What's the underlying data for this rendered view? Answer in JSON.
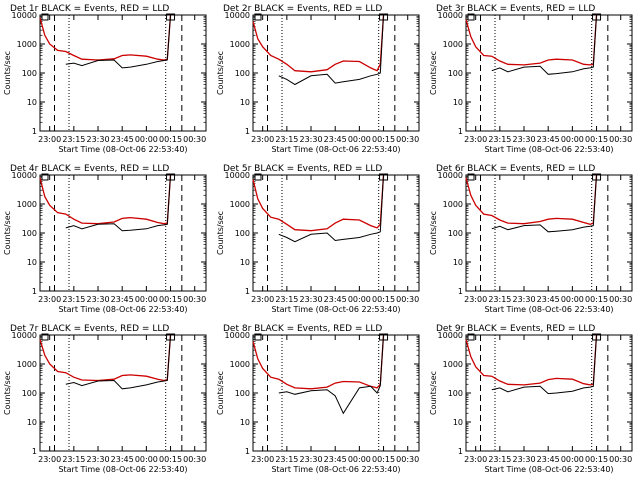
{
  "ylabel": "Counts/sec",
  "xlabel": "Start Time (08-Oct-06 22:53:40)",
  "legend_text": "BLACK = Events, RED = LLD",
  "series_colors": {
    "events": "#000000",
    "lld": "#cc0000"
  },
  "x_ticks": [
    "23:00",
    "23:15",
    "23:30",
    "23:45",
    "00:00",
    "00:15",
    "00:30"
  ],
  "y_ticks": [
    "1",
    "10",
    "100",
    "1000",
    "10000"
  ],
  "chart_data": [
    {
      "type": "line",
      "title": "Det 1r BLACK = Events, RED = LLD",
      "x": [
        "22:54",
        "22:57",
        "23:00",
        "23:05",
        "23:10",
        "23:15",
        "23:20",
        "23:30",
        "23:40",
        "23:45",
        "23:50",
        "00:00",
        "00:07",
        "00:11",
        "00:13",
        "00:15"
      ],
      "series": [
        {
          "values": [
            8000,
            2000,
            1000,
            600,
            550,
            400,
            300,
            280,
            310,
            400,
            420,
            380,
            300,
            280,
            300,
            10000
          ]
        },
        {
          "values": [
            null,
            null,
            null,
            null,
            200,
            220,
            180,
            270,
            280,
            150,
            160,
            200,
            250,
            270,
            280,
            10000
          ]
        }
      ],
      "ylim": [
        1,
        10000
      ],
      "yscale": "log",
      "vlines_dashed": [
        "23:03",
        "00:22"
      ],
      "vlines_dotted": [
        "23:12",
        "00:12"
      ]
    },
    {
      "type": "line",
      "title": "Det 2r BLACK = Events, RED = LLD",
      "x": [
        "22:54",
        "22:57",
        "23:00",
        "23:05",
        "23:10",
        "23:15",
        "23:20",
        "23:30",
        "23:40",
        "23:45",
        "23:50",
        "00:00",
        "00:07",
        "00:11",
        "00:13",
        "00:15"
      ],
      "series": [
        {
          "values": [
            6000,
            1500,
            800,
            400,
            300,
            200,
            120,
            110,
            130,
            200,
            260,
            250,
            150,
            120,
            200,
            10000
          ]
        },
        {
          "values": [
            null,
            null,
            null,
            null,
            80,
            60,
            40,
            80,
            90,
            45,
            50,
            60,
            80,
            90,
            100,
            10000
          ]
        }
      ],
      "ylim": [
        1,
        10000
      ],
      "yscale": "log",
      "vlines_dashed": [
        "23:03",
        "00:22"
      ],
      "vlines_dotted": [
        "23:12",
        "00:12"
      ]
    },
    {
      "type": "line",
      "title": "Det 3r BLACK = Events, RED = LLD",
      "x": [
        "22:54",
        "22:57",
        "23:00",
        "23:05",
        "23:10",
        "23:15",
        "23:20",
        "23:30",
        "23:40",
        "23:45",
        "23:50",
        "00:00",
        "00:07",
        "00:11",
        "00:13",
        "00:15"
      ],
      "series": [
        {
          "values": [
            7000,
            1800,
            800,
            400,
            380,
            260,
            200,
            190,
            220,
            280,
            300,
            280,
            200,
            190,
            200,
            10000
          ]
        },
        {
          "values": [
            null,
            null,
            null,
            null,
            120,
            150,
            110,
            160,
            170,
            90,
            95,
            110,
            140,
            150,
            160,
            10000
          ]
        }
      ],
      "ylim": [
        1,
        10000
      ],
      "yscale": "log",
      "vlines_dashed": [
        "23:03",
        "00:22"
      ],
      "vlines_dotted": [
        "23:12",
        "00:12"
      ]
    },
    {
      "type": "line",
      "title": "Det 4r BLACK = Events, RED = LLD",
      "x": [
        "22:54",
        "22:57",
        "23:00",
        "23:05",
        "23:10",
        "23:15",
        "23:20",
        "23:30",
        "23:40",
        "23:45",
        "23:50",
        "00:00",
        "00:07",
        "00:11",
        "00:13",
        "00:15"
      ],
      "series": [
        {
          "values": [
            8000,
            1800,
            900,
            500,
            450,
            300,
            220,
            210,
            240,
            320,
            340,
            300,
            230,
            210,
            220,
            10000
          ]
        },
        {
          "values": [
            null,
            null,
            null,
            null,
            150,
            180,
            140,
            200,
            210,
            120,
            125,
            140,
            180,
            190,
            200,
            10000
          ]
        }
      ],
      "ylim": [
        1,
        10000
      ],
      "yscale": "log",
      "vlines_dashed": [
        "23:03",
        "00:22"
      ],
      "vlines_dotted": [
        "23:12",
        "00:12"
      ]
    },
    {
      "type": "line",
      "title": "Det 5r BLACK = Events, RED = LLD",
      "x": [
        "22:54",
        "22:57",
        "23:00",
        "23:05",
        "23:10",
        "23:15",
        "23:20",
        "23:30",
        "23:40",
        "23:45",
        "23:50",
        "00:00",
        "00:07",
        "00:11",
        "00:13",
        "00:15"
      ],
      "series": [
        {
          "values": [
            7000,
            1500,
            700,
            350,
            300,
            200,
            130,
            120,
            140,
            220,
            300,
            280,
            180,
            150,
            200,
            10000
          ]
        },
        {
          "values": [
            null,
            null,
            null,
            null,
            90,
            70,
            50,
            90,
            100,
            55,
            60,
            70,
            90,
            100,
            110,
            10000
          ]
        }
      ],
      "ylim": [
        1,
        10000
      ],
      "yscale": "log",
      "vlines_dashed": [
        "23:03",
        "00:22"
      ],
      "vlines_dotted": [
        "23:12",
        "00:12"
      ]
    },
    {
      "type": "line",
      "title": "Det 6r BLACK = Events, RED = LLD",
      "x": [
        "22:54",
        "22:57",
        "23:00",
        "23:05",
        "23:10",
        "23:15",
        "23:20",
        "23:30",
        "23:40",
        "23:45",
        "23:50",
        "00:00",
        "00:07",
        "00:11",
        "00:13",
        "00:15"
      ],
      "series": [
        {
          "values": [
            8000,
            2000,
            900,
            450,
            400,
            280,
            220,
            210,
            250,
            300,
            320,
            300,
            230,
            200,
            220,
            10000
          ]
        },
        {
          "values": [
            null,
            null,
            null,
            null,
            140,
            170,
            130,
            180,
            190,
            110,
            115,
            130,
            160,
            170,
            180,
            10000
          ]
        }
      ],
      "ylim": [
        1,
        10000
      ],
      "yscale": "log",
      "vlines_dashed": [
        "23:03",
        "00:22"
      ],
      "vlines_dotted": [
        "23:12",
        "00:12"
      ]
    },
    {
      "type": "line",
      "title": "Det 7r BLACK = Events, RED = LLD",
      "x": [
        "22:54",
        "22:57",
        "23:00",
        "23:05",
        "23:10",
        "23:15",
        "23:20",
        "23:30",
        "23:40",
        "23:45",
        "23:50",
        "00:00",
        "00:07",
        "00:11",
        "00:13",
        "00:15"
      ],
      "series": [
        {
          "values": [
            7000,
            2000,
            1000,
            550,
            500,
            350,
            280,
            270,
            300,
            400,
            420,
            380,
            300,
            270,
            290,
            10000
          ]
        },
        {
          "values": [
            null,
            null,
            null,
            null,
            200,
            230,
            180,
            260,
            270,
            140,
            150,
            190,
            240,
            260,
            270,
            10000
          ]
        }
      ],
      "ylim": [
        1,
        10000
      ],
      "yscale": "log",
      "vlines_dashed": [
        "23:03",
        "00:22"
      ],
      "vlines_dotted": [
        "23:12",
        "00:12"
      ]
    },
    {
      "type": "line",
      "title": "Det 8r BLACK = Events, RED = LLD",
      "x": [
        "22:54",
        "22:57",
        "23:00",
        "23:05",
        "23:10",
        "23:15",
        "23:20",
        "23:30",
        "23:40",
        "23:45",
        "23:50",
        "00:00",
        "00:07",
        "00:11",
        "00:13",
        "00:15"
      ],
      "series": [
        {
          "values": [
            6000,
            1500,
            700,
            350,
            300,
            200,
            150,
            140,
            160,
            220,
            250,
            240,
            170,
            150,
            200,
            10000
          ]
        },
        {
          "values": [
            null,
            null,
            null,
            null,
            100,
            110,
            90,
            120,
            130,
            80,
            20,
            150,
            170,
            100,
            180,
            10000
          ]
        }
      ],
      "ylim": [
        1,
        10000
      ],
      "yscale": "log",
      "vlines_dashed": [
        "23:03",
        "00:22"
      ],
      "vlines_dotted": [
        "23:12",
        "00:12"
      ]
    },
    {
      "type": "line",
      "title": "Det 9r BLACK = Events, RED = LLD",
      "x": [
        "22:54",
        "22:57",
        "23:00",
        "23:05",
        "23:10",
        "23:15",
        "23:20",
        "23:30",
        "23:40",
        "23:45",
        "23:50",
        "00:00",
        "00:07",
        "00:11",
        "00:13",
        "00:15"
      ],
      "series": [
        {
          "values": [
            7000,
            1800,
            800,
            400,
            380,
            260,
            200,
            190,
            220,
            290,
            320,
            300,
            210,
            190,
            200,
            10000
          ]
        },
        {
          "values": [
            null,
            null,
            null,
            null,
            130,
            150,
            110,
            160,
            170,
            95,
            100,
            115,
            150,
            160,
            170,
            10000
          ]
        }
      ],
      "ylim": [
        1,
        10000
      ],
      "yscale": "log",
      "vlines_dashed": [
        "23:03",
        "00:22"
      ],
      "vlines_dotted": [
        "23:12",
        "00:12"
      ]
    }
  ]
}
